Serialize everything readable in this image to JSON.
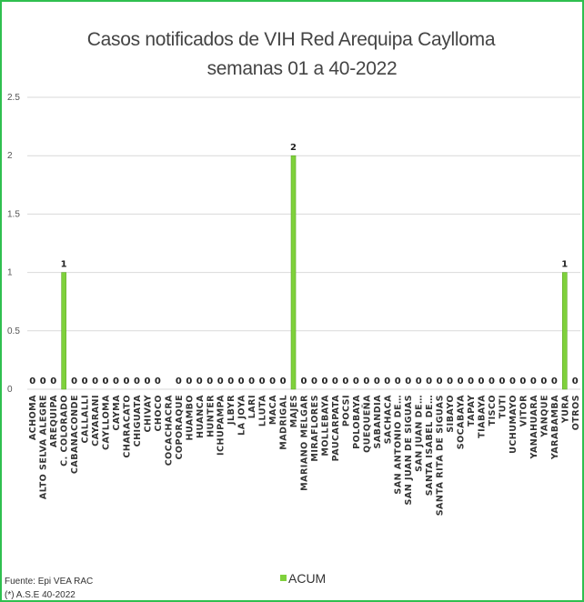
{
  "chart_data": {
    "type": "bar",
    "title": [
      "Casos notificados de VIH Red Arequipa Caylloma",
      "semanas 01 a 40-2022"
    ],
    "xlabel": "",
    "ylabel": "",
    "ylim": [
      0,
      2.5
    ],
    "yticks": [
      "0",
      "0.5",
      "1",
      "1.5",
      "2",
      "2.5"
    ],
    "grid": true,
    "legend_position": "bottom",
    "categories": [
      "ACHOMA",
      "ALTO SELVA ALEGRE",
      "AREQUIPA",
      "C. COLORADO",
      "CABANACONDE",
      "CALLALLI",
      "CAYARANI",
      "CAYLLOMA",
      "CAYMA",
      "CHARACATO",
      "CHIGUATA",
      "CHIVAY",
      "CHOCO",
      "COCACHACRA",
      "COPORAQUE",
      "HUAMBO",
      "HUANCA",
      "HUNTER",
      "ICHUPAMPA",
      "JLBYR",
      "LA JOYA",
      "LARI",
      "LLUTA",
      "MACA",
      "MADRIGAL",
      "MAJES",
      "MARIANO MELGAR",
      "MIRAFLORES",
      "MOLLEBAYA",
      "PAUCARPATA",
      "POCSI",
      "POLOBAYA",
      "QUEQUEÑA",
      "SABANDIA",
      "SACHACA",
      "SAN ANTONIO DE…",
      "SAN JUAN DE SIGUAS",
      "SAN JUAN DE…",
      "SANTA ISABEL DE…",
      "SANTA RITA DE SIGUAS",
      "SIBAYO",
      "SOCABAYA",
      "TAPAY",
      "TIABAYA",
      "TISCO",
      "TUTI",
      "UCHUMAYO",
      "VITOR",
      "YANAHUARA",
      "YANQUE",
      "YARABAMBA",
      "YURA",
      "OTROS"
    ],
    "series": [
      {
        "name": "ACUM",
        "color": "#7fd13b",
        "values": [
          0,
          0,
          0,
          1,
          0,
          0,
          0,
          0,
          0,
          0,
          0,
          0,
          0,
          null,
          0,
          0,
          0,
          0,
          0,
          0,
          0,
          0,
          0,
          0,
          0,
          2,
          0,
          0,
          0,
          0,
          0,
          0,
          0,
          0,
          0,
          0,
          0,
          0,
          0,
          0,
          0,
          0,
          0,
          0,
          0,
          0,
          0,
          0,
          0,
          0,
          0,
          1,
          0
        ]
      }
    ]
  },
  "footer": {
    "source_line1": "Fuente: Epi VEA RAC",
    "source_line2": "(*) A.S.E 40-2022"
  }
}
